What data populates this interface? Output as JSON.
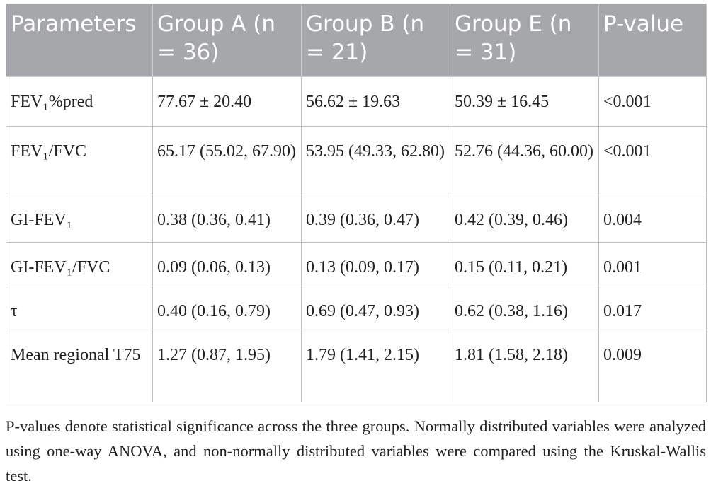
{
  "table": {
    "header": [
      "Parameters",
      "Group A (n = 36)",
      "Group B (n = 21)",
      "Group E (n = 31)",
      "P-value"
    ],
    "rows": [
      [
        "FEV₁%pred",
        "77.67 ± 20.40",
        "56.62 ± 19.63",
        "50.39 ± 16.45",
        "<0.001"
      ],
      [
        "FEV₁/FVC",
        "65.17 (55.02, 67.90)",
        "53.95 (49.33, 62.80)",
        "52.76 (44.36, 60.00)",
        "<0.001"
      ],
      [
        "GI-FEV₁",
        "0.38 (0.36, 0.41)",
        "0.39 (0.36, 0.47)",
        "0.42 (0.39, 0.46)",
        "0.004"
      ],
      [
        "GI-FEV₁/FVC",
        "0.09 (0.06, 0.13)",
        "0.13 (0.09, 0.17)",
        "0.15 (0.11, 0.21)",
        "0.001"
      ],
      [
        "τ",
        "0.40 (0.16, 0.79)",
        "0.69 (0.47, 0.93)",
        "0.62 (0.38, 1.16)",
        "0.017"
      ],
      [
        "Mean regional T75",
        "1.27 (0.87, 1.95)",
        "1.79 (1.41, 2.15)",
        "1.81 (1.58, 2.18)",
        "0.009"
      ]
    ]
  },
  "footnote": "P-values denote statistical significance across the three groups. Normally distributed variables were analyzed using one-way ANOVA, and non-normally distributed variables were compared using the Kruskal-Wallis test."
}
